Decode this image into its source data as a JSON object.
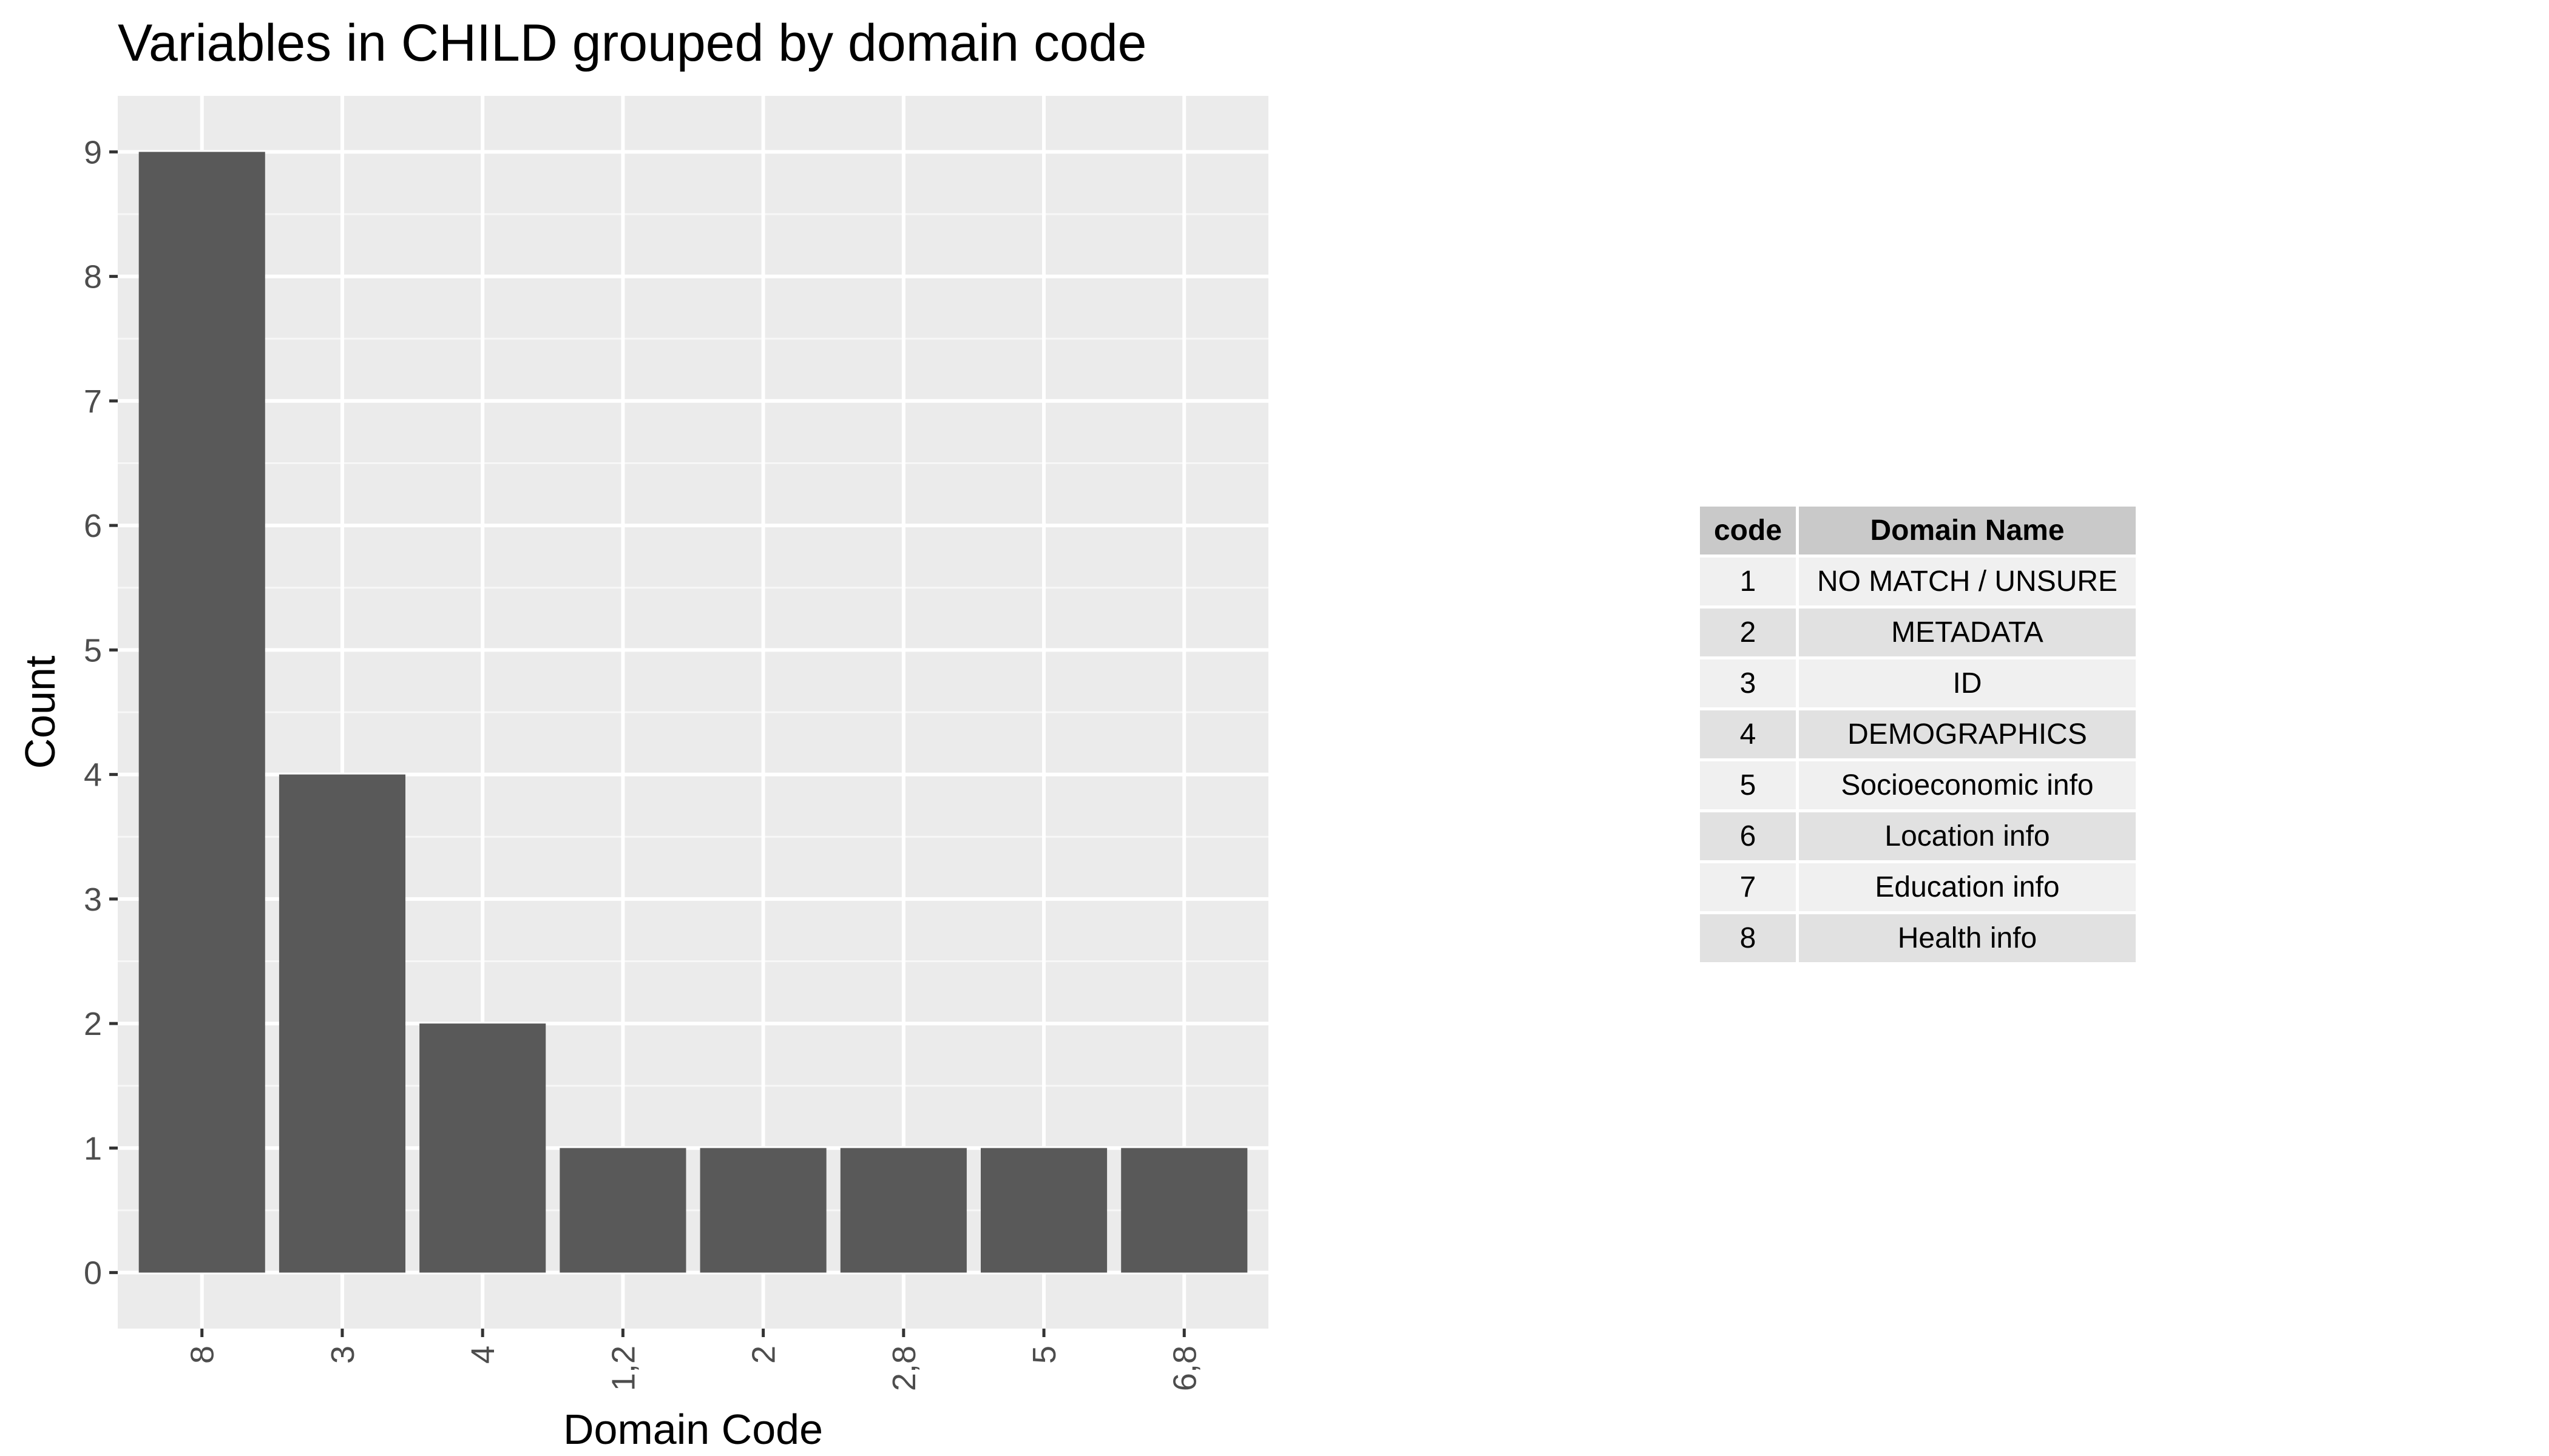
{
  "chart_data": {
    "type": "bar",
    "title": "Variables in CHILD grouped by domain code",
    "xlabel": "Domain Code",
    "ylabel": "Count",
    "categories": [
      "8",
      "3",
      "4",
      "1,2",
      "2",
      "2,8",
      "5",
      "6,8"
    ],
    "values": [
      9,
      4,
      2,
      1,
      1,
      1,
      1,
      1
    ],
    "ylim": [
      -0.45,
      9.45
    ],
    "yticks": [
      0,
      1,
      2,
      3,
      4,
      5,
      6,
      7,
      8,
      9
    ],
    "grid": true,
    "bar_color": "#595959",
    "panel_color": "#ebebeb"
  },
  "table": {
    "headers": [
      "code",
      "Domain Name"
    ],
    "rows": [
      [
        "1",
        "NO MATCH / UNSURE"
      ],
      [
        "2",
        "METADATA"
      ],
      [
        "3",
        "ID"
      ],
      [
        "4",
        "DEMOGRAPHICS"
      ],
      [
        "5",
        "Socioeconomic info"
      ],
      [
        "6",
        "Location info"
      ],
      [
        "7",
        "Education info"
      ],
      [
        "8",
        "Health info"
      ]
    ]
  }
}
